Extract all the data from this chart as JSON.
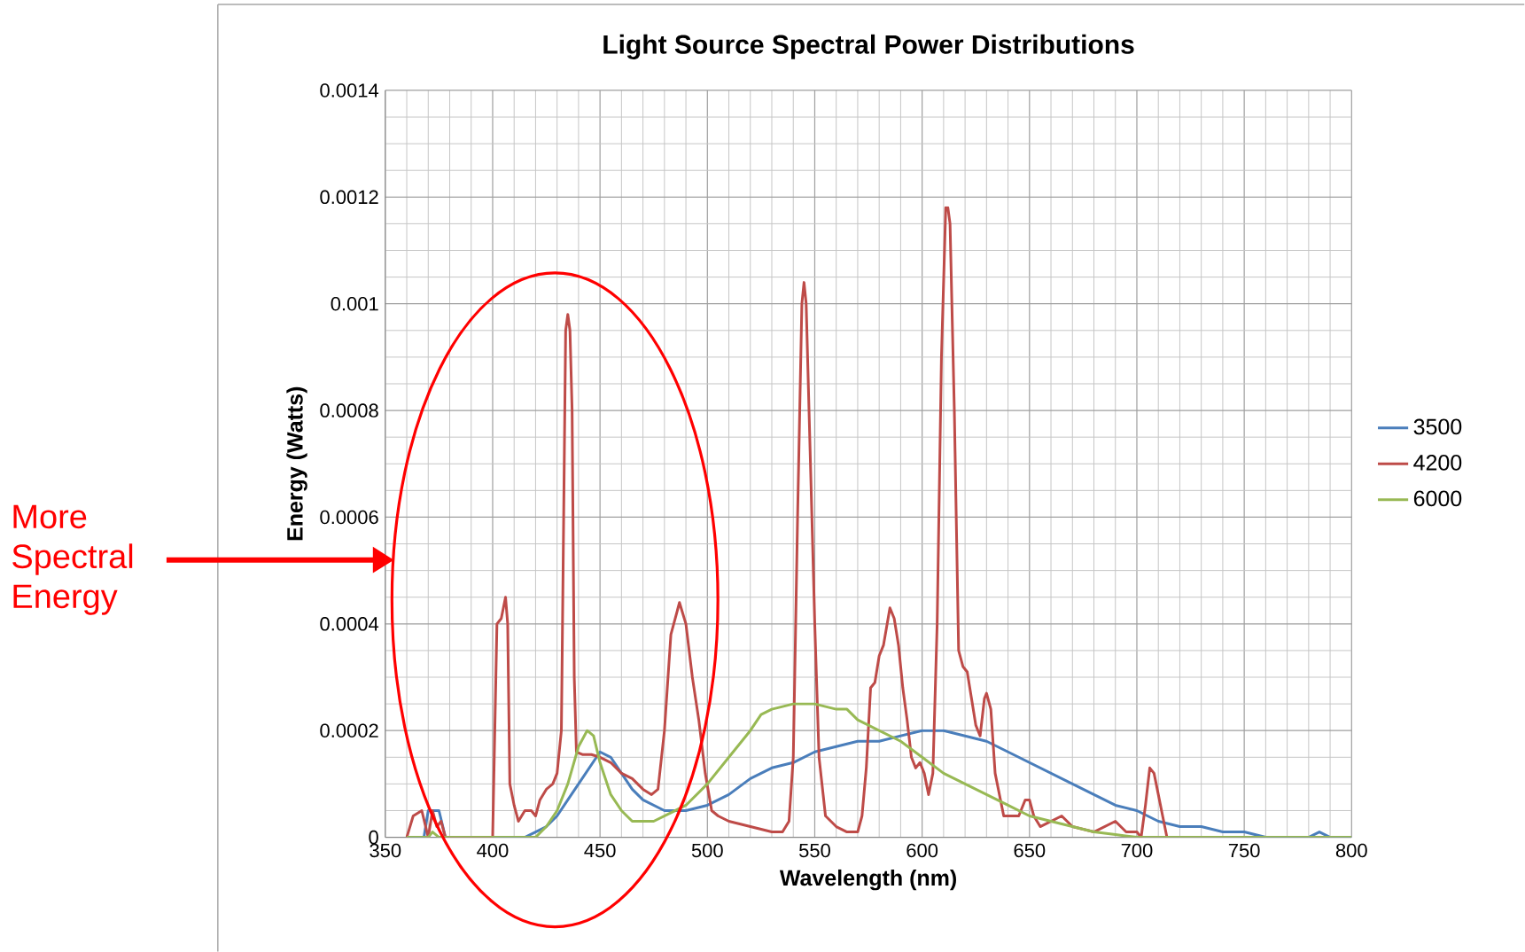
{
  "chart_data": {
    "type": "line",
    "title": "Light Source Spectral Power Distributions",
    "xlabel": "Wavelength (nm)",
    "ylabel": "Energy (Watts)",
    "xlim": [
      350,
      800
    ],
    "xticks": [
      350,
      400,
      450,
      500,
      550,
      600,
      650,
      700,
      750,
      800
    ],
    "ylim": [
      0,
      0.0014
    ],
    "yticks": [
      0,
      0.0002,
      0.0004,
      0.0006,
      0.0008,
      0.001,
      0.0012,
      0.0014
    ],
    "grid": true,
    "legend": "right",
    "marker": "none",
    "line_style": "solid",
    "annotations": [
      "More Spectral Energy"
    ],
    "series": [
      {
        "name": "3500",
        "color": "#4a7ebb",
        "x": [
          360,
          368,
          370,
          372,
          375,
          378,
          415,
          420,
          425,
          430,
          435,
          440,
          445,
          450,
          455,
          460,
          465,
          470,
          475,
          480,
          490,
          500,
          510,
          520,
          530,
          540,
          550,
          560,
          570,
          580,
          590,
          600,
          610,
          620,
          630,
          640,
          650,
          660,
          670,
          680,
          690,
          700,
          710,
          720,
          730,
          740,
          750,
          760,
          780,
          785,
          790,
          800
        ],
        "values": [
          0,
          0,
          5e-05,
          5e-05,
          5e-05,
          0,
          0,
          1e-05,
          2e-05,
          4e-05,
          7e-05,
          0.0001,
          0.00013,
          0.00016,
          0.00015,
          0.00012,
          9e-05,
          7e-05,
          6e-05,
          5e-05,
          5e-05,
          6e-05,
          8e-05,
          0.00011,
          0.00013,
          0.00014,
          0.00016,
          0.00017,
          0.00018,
          0.00018,
          0.00019,
          0.0002,
          0.0002,
          0.00019,
          0.00018,
          0.00016,
          0.00014,
          0.00012,
          0.0001,
          8e-05,
          6e-05,
          5e-05,
          3e-05,
          2e-05,
          2e-05,
          1e-05,
          1e-05,
          0,
          0,
          1e-05,
          0,
          0
        ]
      },
      {
        "name": "4200",
        "color": "#be4b48",
        "x": [
          360,
          363,
          367,
          370,
          372,
          374,
          376,
          378,
          385,
          400,
          402,
          404,
          406,
          407,
          408,
          410,
          412,
          415,
          418,
          420,
          422,
          425,
          428,
          430,
          432,
          434,
          435,
          436,
          437,
          438,
          439,
          442,
          446,
          450,
          455,
          460,
          465,
          470,
          474,
          477,
          480,
          483,
          487,
          490,
          493,
          496,
          499,
          502,
          505,
          510,
          520,
          530,
          535,
          538,
          540,
          542,
          544,
          545,
          546,
          548,
          550,
          552,
          555,
          560,
          565,
          570,
          572,
          574,
          576,
          578,
          580,
          582,
          585,
          587,
          589,
          591,
          593,
          595,
          597,
          599,
          601,
          603,
          605,
          607,
          609,
          611,
          612,
          613,
          615,
          617,
          619,
          621,
          623,
          625,
          627,
          629,
          630,
          632,
          634,
          638,
          645,
          648,
          650,
          652,
          655,
          660,
          665,
          670,
          680,
          685,
          690,
          695,
          700,
          702,
          704,
          706,
          708,
          710,
          712,
          714
        ],
        "values": [
          0,
          4e-05,
          5e-05,
          0,
          5e-05,
          2e-05,
          3e-05,
          0,
          0,
          0,
          0.0004,
          0.00041,
          0.00045,
          0.0004,
          0.0001,
          6e-05,
          3e-05,
          5e-05,
          5e-05,
          4e-05,
          7e-05,
          9e-05,
          0.0001,
          0.00012,
          0.0002,
          0.00095,
          0.00098,
          0.00095,
          0.0008,
          0.0003,
          0.00016,
          0.000155,
          0.000155,
          0.00015,
          0.00014,
          0.00012,
          0.00011,
          9e-05,
          8e-05,
          9e-05,
          0.0002,
          0.00038,
          0.00044,
          0.0004,
          0.0003,
          0.00022,
          0.00012,
          5e-05,
          4e-05,
          3e-05,
          2e-05,
          1e-05,
          1e-05,
          3e-05,
          0.00015,
          0.0006,
          0.001,
          0.00104,
          0.001,
          0.0007,
          0.0004,
          0.00015,
          4e-05,
          2e-05,
          1e-05,
          1e-05,
          4e-05,
          0.00013,
          0.00028,
          0.00029,
          0.00034,
          0.00036,
          0.00043,
          0.00041,
          0.00036,
          0.00028,
          0.00022,
          0.00015,
          0.00013,
          0.00014,
          0.00012,
          8e-05,
          0.00012,
          0.0004,
          0.0009,
          0.00118,
          0.00118,
          0.00115,
          0.0008,
          0.00035,
          0.00032,
          0.00031,
          0.00026,
          0.00021,
          0.00019,
          0.00026,
          0.00027,
          0.00024,
          0.00012,
          4e-05,
          4e-05,
          7e-05,
          7e-05,
          4e-05,
          2e-05,
          3e-05,
          4e-05,
          2e-05,
          1e-05,
          2e-05,
          3e-05,
          1e-05,
          1e-05,
          0,
          6e-05,
          0.00013,
          0.00012,
          8e-05,
          4e-05,
          0
        ]
      },
      {
        "name": "6000",
        "color": "#98b954",
        "x": [
          360,
          370,
          372,
          375,
          420,
          425,
          430,
          435,
          440,
          444,
          447,
          450,
          455,
          460,
          465,
          470,
          475,
          480,
          490,
          500,
          510,
          520,
          525,
          530,
          540,
          550,
          560,
          565,
          570,
          580,
          590,
          600,
          610,
          620,
          630,
          640,
          650,
          660,
          670,
          680,
          690,
          700,
          800
        ],
        "values": [
          0,
          0,
          1e-05,
          0,
          0,
          2e-05,
          5e-05,
          0.0001,
          0.00017,
          0.0002,
          0.00019,
          0.00014,
          8e-05,
          5e-05,
          3e-05,
          3e-05,
          3e-05,
          4e-05,
          6e-05,
          0.0001,
          0.00015,
          0.0002,
          0.00023,
          0.00024,
          0.00025,
          0.00025,
          0.00024,
          0.00024,
          0.00022,
          0.0002,
          0.00018,
          0.00015,
          0.00012,
          0.0001,
          8e-05,
          6e-05,
          4e-05,
          3e-05,
          2e-05,
          1e-05,
          5e-06,
          0,
          0
        ]
      }
    ]
  }
}
